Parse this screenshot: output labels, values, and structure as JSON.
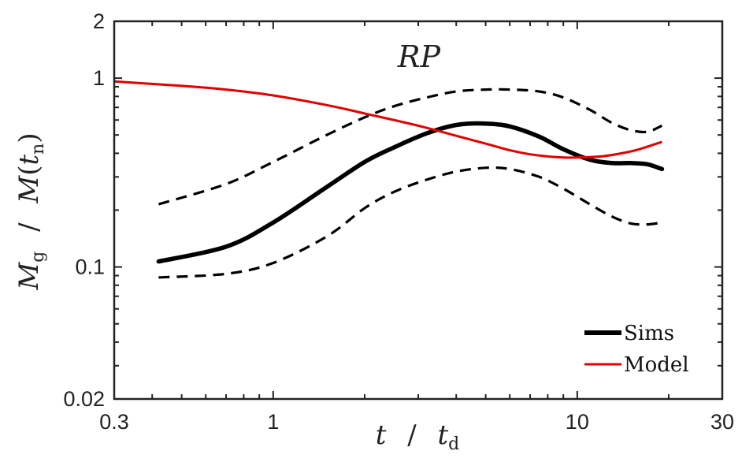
{
  "chart_data": {
    "type": "line",
    "title": "RP",
    "xscale": "log",
    "yscale": "log",
    "xlim": [
      0.3,
      30
    ],
    "ylim": [
      0.02,
      2
    ],
    "xticks": [
      0.3,
      1,
      10,
      30
    ],
    "xtick_labels": [
      "0.3",
      "1",
      "10",
      "30"
    ],
    "yticks": [
      0.02,
      0.1,
      1,
      2
    ],
    "ytick_labels": [
      "0.02",
      "0.1",
      "1",
      "2"
    ],
    "xlabel": {
      "var": "t",
      "sep": "/",
      "den": "t",
      "den_sub": "d"
    },
    "ylabel": {
      "num": "M",
      "num_sub": "g",
      "sep": "/",
      "den": "M",
      "den_open": "(",
      "den_arg": "t",
      "den_arg_sub": "n",
      "den_close": ")"
    },
    "legend": {
      "position": "bottom-right",
      "entries": [
        "Sims",
        "Model"
      ]
    },
    "series": [
      {
        "name": "Sims",
        "color": "#000000",
        "style": "solid-thick",
        "x": [
          0.42,
          0.7,
          1.0,
          1.5,
          2.0,
          2.5,
          3.2,
          4.0,
          5.0,
          6.0,
          7.5,
          9.0,
          11.0,
          13.0,
          15.0,
          17.0,
          19.0
        ],
        "y": [
          0.107,
          0.128,
          0.172,
          0.265,
          0.36,
          0.43,
          0.51,
          0.565,
          0.575,
          0.555,
          0.49,
          0.42,
          0.37,
          0.355,
          0.355,
          0.35,
          0.33
        ]
      },
      {
        "name": "Sims upper bound",
        "color": "#000000",
        "style": "dashed",
        "x": [
          0.42,
          0.7,
          1.0,
          1.5,
          2.0,
          2.5,
          3.2,
          4.0,
          5.0,
          6.0,
          7.5,
          9.0,
          11.0,
          13.0,
          15.0,
          17.0,
          19.0
        ],
        "y": [
          0.215,
          0.275,
          0.36,
          0.5,
          0.62,
          0.71,
          0.79,
          0.85,
          0.87,
          0.87,
          0.85,
          0.79,
          0.68,
          0.58,
          0.53,
          0.52,
          0.56
        ]
      },
      {
        "name": "Sims lower bound",
        "color": "#000000",
        "style": "dashed",
        "x": [
          0.42,
          0.7,
          1.0,
          1.5,
          2.0,
          2.5,
          3.2,
          4.0,
          5.0,
          6.0,
          7.5,
          9.0,
          11.0,
          13.0,
          15.0,
          17.0,
          19.0
        ],
        "y": [
          0.088,
          0.092,
          0.105,
          0.145,
          0.205,
          0.25,
          0.29,
          0.32,
          0.335,
          0.33,
          0.3,
          0.26,
          0.215,
          0.185,
          0.17,
          0.168,
          0.172
        ]
      },
      {
        "name": "Model",
        "color": "#e00000",
        "style": "solid",
        "x": [
          0.3,
          0.5,
          0.7,
          1.0,
          1.5,
          2.0,
          3.0,
          4.0,
          5.0,
          6.0,
          7.0,
          8.0,
          9.0,
          10.0,
          12.0,
          14.0,
          16.0,
          19.0
        ],
        "y": [
          0.96,
          0.91,
          0.87,
          0.81,
          0.72,
          0.65,
          0.56,
          0.495,
          0.45,
          0.415,
          0.395,
          0.385,
          0.38,
          0.38,
          0.385,
          0.4,
          0.42,
          0.46
        ]
      }
    ]
  }
}
